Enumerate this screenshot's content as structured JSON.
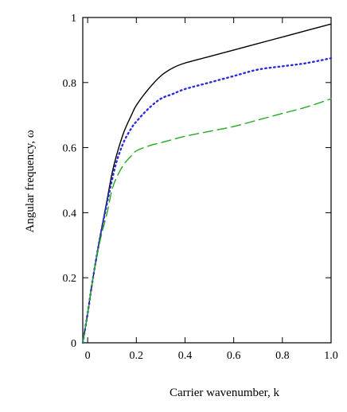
{
  "chart_data": {
    "type": "line",
    "title": "",
    "xlabel": "Carrier wavenumber,  k",
    "ylabel": "Angular frequency,  ω",
    "xlim": [
      -0.02,
      1.0
    ],
    "ylim": [
      0,
      1.0
    ],
    "x_ticks": [
      {
        "value": 0,
        "label": "0"
      },
      {
        "value": 0.2,
        "label": "0.2"
      },
      {
        "value": 0.4,
        "label": "0.4"
      },
      {
        "value": 0.6,
        "label": "0.6"
      },
      {
        "value": 0.8,
        "label": "0.8"
      },
      {
        "value": 1.0,
        "label": "1.0"
      }
    ],
    "y_ticks": [
      {
        "value": 0,
        "label": "0"
      },
      {
        "value": 0.2,
        "label": "0.2"
      },
      {
        "value": 0.4,
        "label": "0.4"
      },
      {
        "value": 0.6,
        "label": "0.6"
      },
      {
        "value": 0.8,
        "label": "0.8"
      },
      {
        "value": 1.0,
        "label": "1"
      }
    ],
    "grid": false,
    "legend": "none",
    "x": [
      -0.02,
      0.0,
      0.02,
      0.05,
      0.08,
      0.1,
      0.12,
      0.15,
      0.18,
      0.2,
      0.25,
      0.3,
      0.35,
      0.4,
      0.5,
      0.6,
      0.7,
      0.8,
      0.9,
      1.0
    ],
    "series": [
      {
        "color": "#000000",
        "style": "solid",
        "values": [
          0.0,
          0.09,
          0.19,
          0.32,
          0.44,
          0.52,
          0.58,
          0.65,
          0.7,
          0.73,
          0.78,
          0.82,
          0.845,
          0.86,
          0.88,
          0.9,
          0.92,
          0.94,
          0.96,
          0.98
        ]
      },
      {
        "color": "#2a2ae0",
        "style": "dotted",
        "values": [
          0.0,
          0.09,
          0.19,
          0.32,
          0.43,
          0.5,
          0.56,
          0.62,
          0.66,
          0.68,
          0.72,
          0.75,
          0.765,
          0.78,
          0.8,
          0.82,
          0.84,
          0.85,
          0.86,
          0.875
        ]
      },
      {
        "color": "#22aa22",
        "style": "dashed",
        "values": [
          0.0,
          0.09,
          0.19,
          0.31,
          0.4,
          0.47,
          0.51,
          0.55,
          0.575,
          0.59,
          0.605,
          0.615,
          0.625,
          0.635,
          0.65,
          0.665,
          0.685,
          0.705,
          0.725,
          0.75
        ]
      }
    ]
  }
}
